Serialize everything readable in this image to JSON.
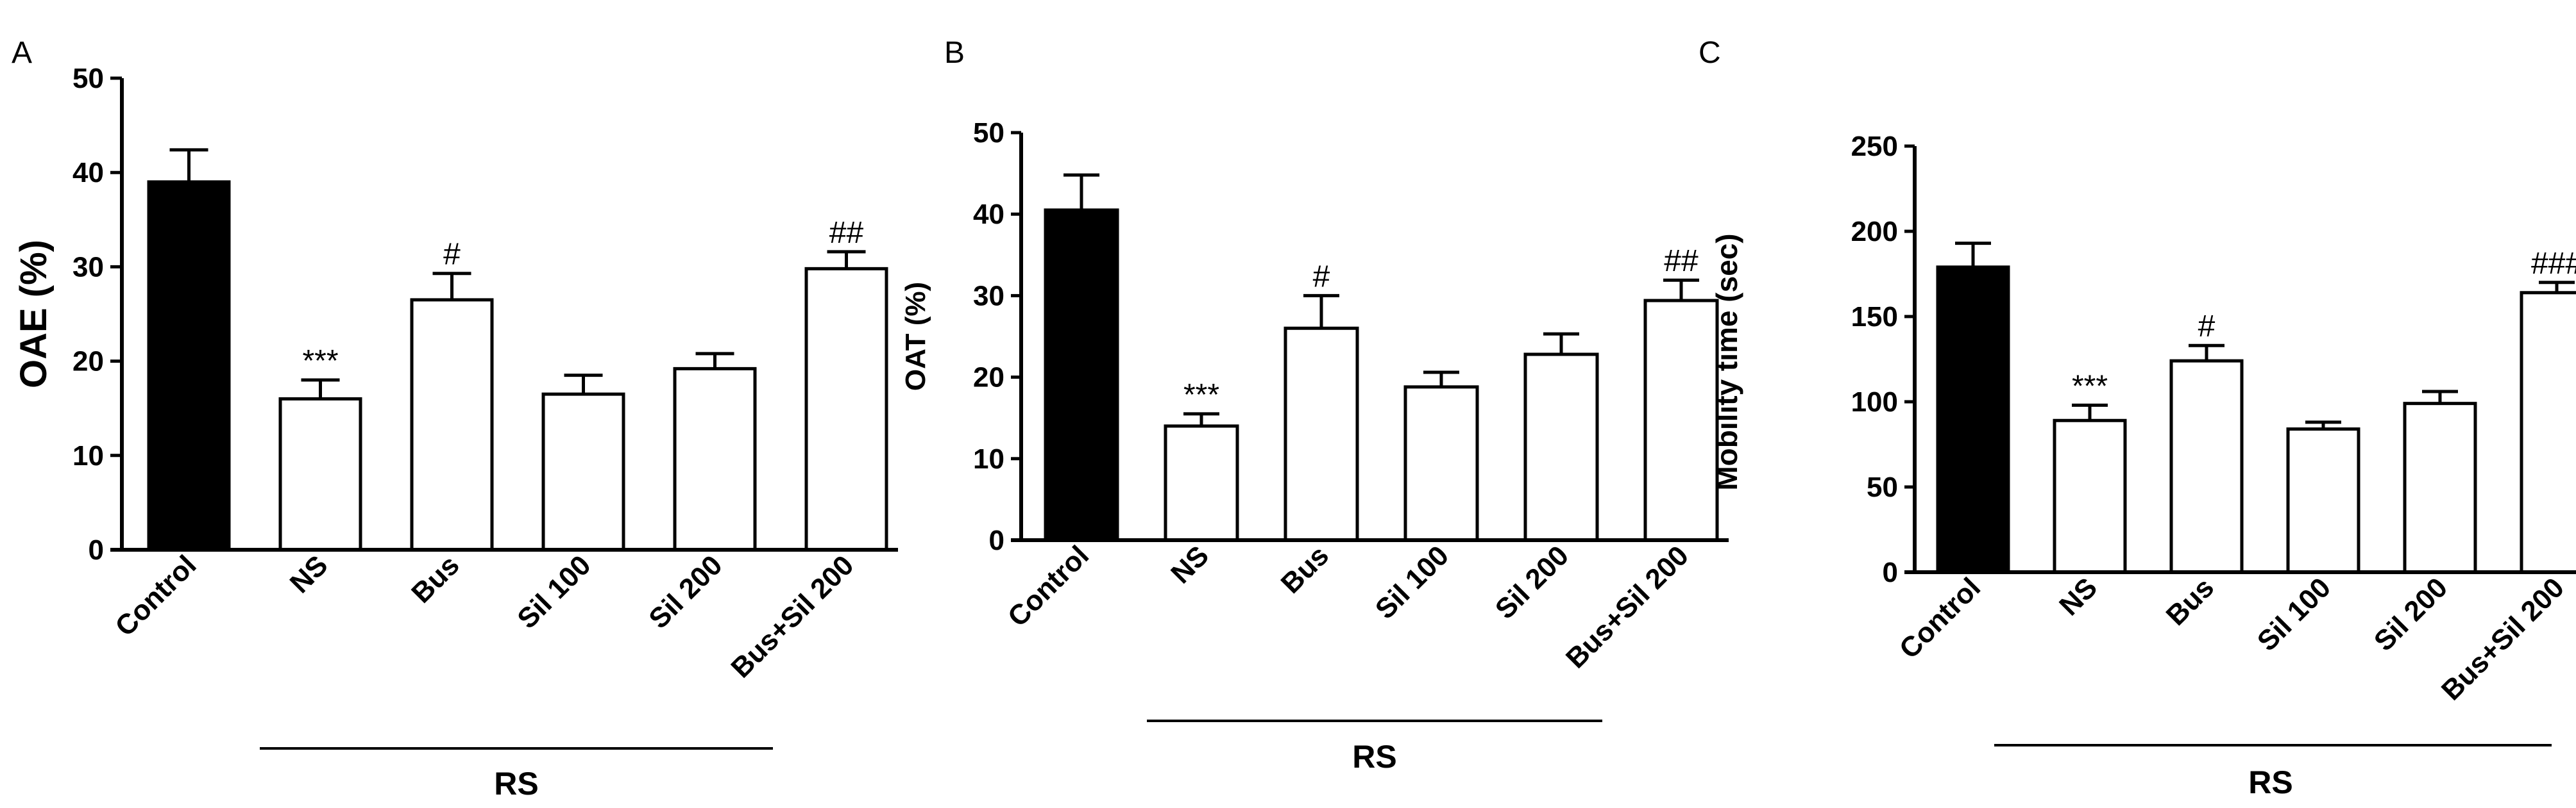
{
  "colors": {
    "control_fill": "#000000",
    "treatment_fill": "#ffffff",
    "stroke": "#000000"
  },
  "chart_data": [
    {
      "type": "bar",
      "panel": "A",
      "ylabel": "OAE (%)",
      "ylim": [
        0,
        50
      ],
      "yticks": [
        0,
        10,
        20,
        30,
        40,
        50
      ],
      "categories": [
        "Control",
        "NS",
        "Bus",
        "Sil 100",
        "Sil 200",
        "Bus+Sil 200"
      ],
      "values": [
        39,
        16,
        26.5,
        16.5,
        19.2,
        29.8
      ],
      "errors": [
        3.4,
        2.0,
        2.8,
        2.0,
        1.6,
        1.8
      ],
      "annotations": [
        "",
        "***",
        "#",
        "",
        "",
        "##"
      ],
      "group_label": "RS",
      "grid": false
    },
    {
      "type": "bar",
      "panel": "B",
      "ylabel": "OAT (%)",
      "ylim": [
        0,
        50
      ],
      "yticks": [
        0,
        10,
        20,
        30,
        40,
        50
      ],
      "categories": [
        "Control",
        "NS",
        "Bus",
        "Sil 100",
        "Sil 200",
        "Bus+Sil 200"
      ],
      "values": [
        40.5,
        14,
        26,
        18.8,
        22.8,
        29.4
      ],
      "errors": [
        4.3,
        1.5,
        4.0,
        1.8,
        2.5,
        2.5
      ],
      "annotations": [
        "",
        "***",
        "#",
        "",
        "",
        "##"
      ],
      "group_label": "RS",
      "grid": false
    },
    {
      "type": "bar",
      "panel": "C",
      "ylabel": "Mobility time  (sec)",
      "ylim": [
        0,
        250
      ],
      "yticks": [
        0,
        50,
        100,
        150,
        200,
        250
      ],
      "categories": [
        "Control",
        "NS",
        "Bus",
        "Sil 100",
        "Sil 200",
        "Bus+Sil 200"
      ],
      "values": [
        179,
        89,
        124,
        84,
        99,
        164
      ],
      "errors": [
        14,
        9,
        9,
        4,
        7,
        6
      ],
      "annotations": [
        "",
        "***",
        "#",
        "",
        "",
        "###"
      ],
      "group_label": "RS",
      "grid": false
    }
  ]
}
